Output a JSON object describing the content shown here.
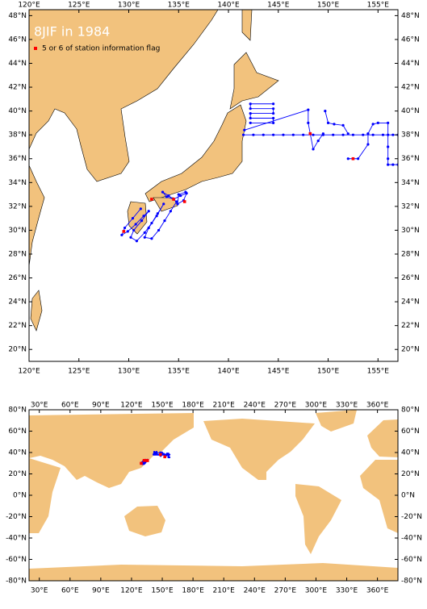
{
  "title": "8JIF in 1984",
  "legend": {
    "label": "5 or 6 of station information flag",
    "color": "#ff0000"
  },
  "track_color": "#0000ff",
  "map_top": {
    "xlim": [
      120,
      157
    ],
    "ylim": [
      19,
      48.5
    ],
    "xticks": [
      {
        "value": 120,
        "label": "120°E"
      },
      {
        "value": 125,
        "label": "125°E"
      },
      {
        "value": 130,
        "label": "130°E"
      },
      {
        "value": 135,
        "label": "135°E"
      },
      {
        "value": 140,
        "label": "140°E"
      },
      {
        "value": 145,
        "label": "145°E"
      },
      {
        "value": 150,
        "label": "150°E"
      },
      {
        "value": 155,
        "label": "155°E"
      }
    ],
    "yticks": [
      {
        "value": 20,
        "label": "20°N"
      },
      {
        "value": 22,
        "label": "22°N"
      },
      {
        "value": 24,
        "label": "24°N"
      },
      {
        "value": 26,
        "label": "26°N"
      },
      {
        "value": 28,
        "label": "28°N"
      },
      {
        "value": 30,
        "label": "30°N"
      },
      {
        "value": 32,
        "label": "32°N"
      },
      {
        "value": 34,
        "label": "34°N"
      },
      {
        "value": 36,
        "label": "36°N"
      },
      {
        "value": 38,
        "label": "38°N"
      },
      {
        "value": 40,
        "label": "40°N"
      },
      {
        "value": 42,
        "label": "42°N"
      },
      {
        "value": 44,
        "label": "44°N"
      },
      {
        "value": 46,
        "label": "46°N"
      },
      {
        "value": 48,
        "label": "48°N"
      }
    ]
  },
  "map_world": {
    "xlim": [
      20,
      380
    ],
    "ylim": [
      -80,
      80
    ],
    "xticks": [
      {
        "value": 30,
        "label": "30°E"
      },
      {
        "value": 60,
        "label": "60°E"
      },
      {
        "value": 90,
        "label": "90°E"
      },
      {
        "value": 120,
        "label": "120°E"
      },
      {
        "value": 150,
        "label": "150°E"
      },
      {
        "value": 180,
        "label": "180°E"
      },
      {
        "value": 210,
        "label": "210°E"
      },
      {
        "value": 240,
        "label": "240°E"
      },
      {
        "value": 270,
        "label": "270°E"
      },
      {
        "value": 300,
        "label": "300°E"
      },
      {
        "value": 330,
        "label": "330°E"
      },
      {
        "value": 360,
        "label": "360°E"
      }
    ],
    "yticks": [
      {
        "value": 80,
        "label": "80°N"
      },
      {
        "value": 60,
        "label": "60°N"
      },
      {
        "value": 40,
        "label": "40°N"
      },
      {
        "value": 20,
        "label": "20°N"
      },
      {
        "value": 0,
        "label": "0°N"
      },
      {
        "value": -20,
        "label": "-20°N"
      },
      {
        "value": -40,
        "label": "-40°N"
      },
      {
        "value": -60,
        "label": "-60°N"
      },
      {
        "value": -80,
        "label": "-80°N"
      }
    ]
  },
  "tracks": [
    {
      "lon": [
        131.2,
        130.4,
        129.6,
        129.3,
        129.9,
        130.7,
        131.5,
        132.0,
        131.3,
        130.5,
        130.2,
        130.8,
        131.6,
        132.3,
        132.9,
        133.5,
        132.8,
        132.0,
        131.6,
        132.3,
        133.0,
        133.6,
        134.2,
        134.8,
        134.0,
        133.4,
        133.8,
        134.5,
        135.2,
        135.8,
        135.5,
        134.9,
        135.0,
        135.7
      ],
      "lat": [
        31.8,
        31.0,
        30.2,
        29.6,
        29.9,
        30.5,
        31.2,
        31.6,
        30.8,
        30.0,
        29.4,
        29.1,
        29.8,
        30.6,
        31.4,
        32.2,
        31.2,
        30.2,
        29.4,
        29.3,
        30.0,
        30.8,
        31.6,
        32.4,
        32.9,
        33.2,
        32.8,
        32.6,
        32.9,
        33.1,
        32.5,
        32.2,
        33.0,
        33.2
      ]
    },
    {
      "lon": [
        141.5,
        142.5,
        143.5,
        144.5,
        145.5,
        146.5,
        147.5,
        148.5,
        149.5,
        150.5,
        151.5,
        152.5,
        153.5,
        154.5,
        155.5,
        156.5,
        157
      ],
      "lat": [
        38,
        38,
        38,
        38,
        38,
        38,
        38,
        38,
        38,
        38,
        38,
        38,
        38,
        38,
        38,
        38,
        38
      ]
    },
    {
      "lon": [
        141.6,
        148,
        148,
        148.2
      ],
      "lat": [
        38.4,
        40.1,
        39,
        38.1
      ]
    },
    {
      "lon": [
        148.2,
        148.5,
        149,
        149.5
      ],
      "lat": [
        38.1,
        36.8,
        37.5,
        38.1
      ]
    },
    {
      "lon": [
        149.7,
        150,
        150.6,
        151.5,
        152
      ],
      "lat": [
        40,
        39,
        38.9,
        38.8,
        38.1
      ]
    },
    {
      "lon": [
        152,
        152.5,
        153,
        154,
        154
      ],
      "lat": [
        36,
        36,
        36,
        37.2,
        38.1
      ]
    },
    {
      "lon": [
        154,
        154.5,
        155,
        156,
        156,
        156,
        156,
        156,
        156.5,
        157
      ],
      "lat": [
        38.1,
        38.9,
        39,
        39,
        38,
        37,
        36,
        35.5,
        35.5,
        35.5
      ]
    },
    {
      "lon": [
        142.2,
        144.5,
        144.5,
        142.2,
        142.2,
        144.5,
        144.5,
        142.2,
        142.2,
        144.5
      ],
      "lat": [
        39,
        39,
        39.4,
        39.4,
        39.8,
        39.8,
        40.2,
        40.2,
        40.6,
        40.6
      ]
    }
  ],
  "flagged": {
    "lon": [
      129.5,
      132.3,
      134.5,
      135.6,
      148.2,
      152.5
    ],
    "lat": [
      29.9,
      32.6,
      32.6,
      32.4,
      38.1,
      36
    ]
  }
}
